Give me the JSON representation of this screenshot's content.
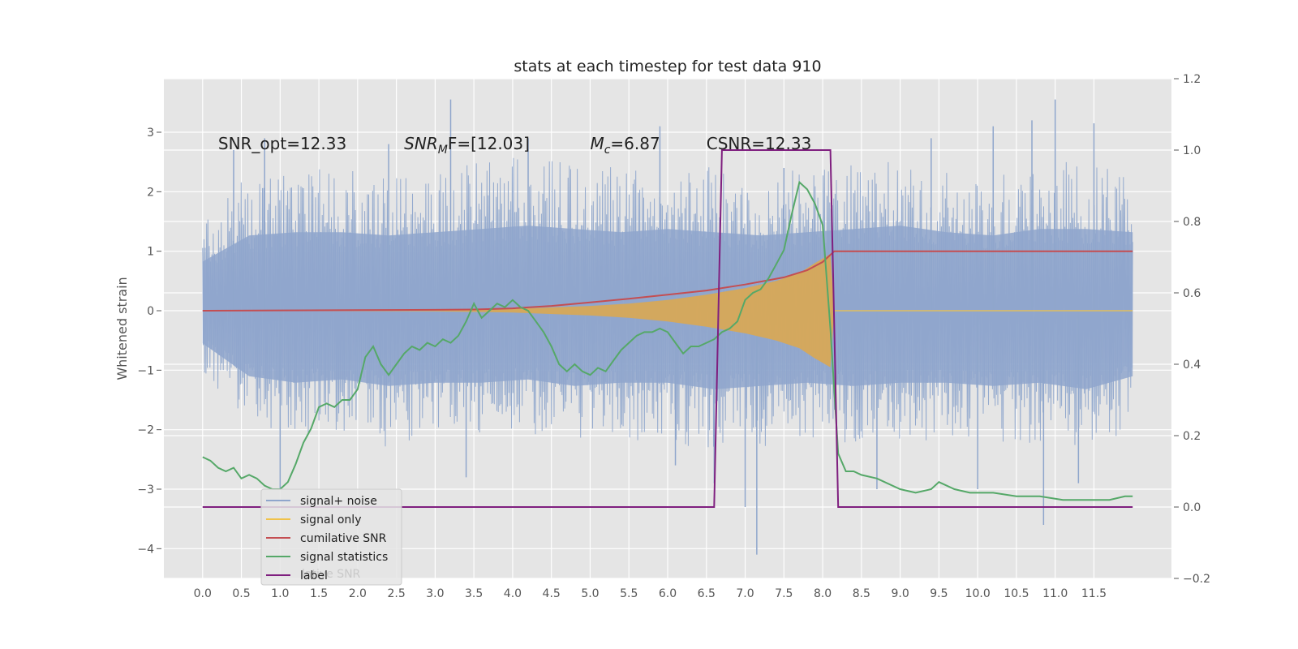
{
  "chart_data": {
    "type": "line",
    "title": "stats at each timestep for test data 910",
    "ylabel": "Whitened strain",
    "y2label": "",
    "xlim": [
      -0.5,
      12.5
    ],
    "ylim": [
      -4.5,
      3.9
    ],
    "y2lim": [
      -0.2,
      1.2
    ],
    "grid": true,
    "xticks": [
      0.0,
      0.5,
      1.0,
      1.5,
      2.0,
      2.5,
      3.0,
      3.5,
      4.0,
      4.5,
      5.0,
      5.5,
      6.0,
      6.5,
      7.0,
      7.5,
      8.0,
      8.5,
      9.0,
      9.5,
      10.0,
      10.5,
      11.0,
      11.5
    ],
    "xtick_labels": [
      "0.0",
      "0.5",
      "1.0",
      "1.5",
      "2.0",
      "2.5",
      "3.0",
      "3.5",
      "4.0",
      "4.5",
      "5.0",
      "5.5",
      "6.0",
      "6.5",
      "7.0",
      "7.5",
      "8.0",
      "8.5",
      "9.0",
      "9.5",
      "10.0",
      "10.5",
      "11.0",
      "11.5"
    ],
    "yticks": [
      3,
      2,
      1,
      0,
      -1,
      -2,
      -3,
      -4
    ],
    "ytick_labels": [
      "3",
      "2",
      "1",
      "0",
      "−1",
      "−2",
      "−3",
      "−4"
    ],
    "y2ticks": [
      1.2,
      1.0,
      0.8,
      0.6,
      0.4,
      0.2,
      0.0,
      -0.2
    ],
    "y2tick_labels": [
      "1.2",
      "1.0",
      "0.8",
      "0.6",
      "0.4",
      "0.2",
      "0.0",
      "−0.2"
    ],
    "annotations": [
      {
        "x": 0.2,
        "text": "SNR_opt=12.33"
      },
      {
        "x": 2.6,
        "base": "SNR",
        "sub": "M",
        "rest": "F=[12.03]"
      },
      {
        "x": 5.0,
        "base": "M",
        "sub": "c",
        "rest": "=6.87"
      },
      {
        "x": 6.5,
        "text": "CSNR=12.33"
      }
    ],
    "legend_position": "lower left",
    "legend": [
      {
        "label": "signal+ noise",
        "color": "#8fa6cc"
      },
      {
        "label": "signal only",
        "color": "#f0c24a"
      },
      {
        "label": "cumilative SNR",
        "color": "#c44e52"
      },
      {
        "label": "signal statistics",
        "color": "#55a868"
      },
      {
        "label": "label",
        "color": "#7f1f7f"
      }
    ],
    "legend_overlap_text": "lative SNR",
    "series": [
      {
        "name": "signal+ noise",
        "axis": "left",
        "color": "#8fa6cc",
        "x_range": [
          0.0,
          12.0
        ],
        "band_upper": [
          1.5,
          2.3,
          2.4,
          2.4,
          2.3,
          2.4,
          2.5,
          2.6,
          2.5,
          2.4,
          2.5,
          2.4,
          2.3,
          2.4,
          2.5,
          2.6,
          2.4,
          2.3,
          2.5,
          2.5,
          2.4
        ],
        "band_lower": [
          -1.0,
          -2.0,
          -2.2,
          -2.1,
          -2.3,
          -2.2,
          -2.2,
          -2.1,
          -2.3,
          -2.2,
          -2.2,
          -2.4,
          -2.3,
          -2.2,
          -2.3,
          -2.2,
          -2.2,
          -2.3,
          -2.2,
          -2.4,
          -2.0
        ],
        "peaks": [
          {
            "x": 0.4,
            "y": 2.7
          },
          {
            "x": 0.8,
            "y": 2.9
          },
          {
            "x": 1.0,
            "y": -3.0
          },
          {
            "x": 2.4,
            "y": 2.8
          },
          {
            "x": 3.2,
            "y": 3.55
          },
          {
            "x": 3.4,
            "y": -2.8
          },
          {
            "x": 4.2,
            "y": 2.9
          },
          {
            "x": 5.9,
            "y": 3.1
          },
          {
            "x": 6.1,
            "y": -2.6
          },
          {
            "x": 6.6,
            "y": -2.9
          },
          {
            "x": 7.0,
            "y": -3.3
          },
          {
            "x": 7.15,
            "y": -4.1
          },
          {
            "x": 7.5,
            "y": 2.4
          },
          {
            "x": 8.7,
            "y": -3.0
          },
          {
            "x": 9.4,
            "y": 2.9
          },
          {
            "x": 10.0,
            "y": -3.0
          },
          {
            "x": 10.2,
            "y": 3.1
          },
          {
            "x": 10.7,
            "y": 3.2
          },
          {
            "x": 10.85,
            "y": -3.6
          },
          {
            "x": 11.0,
            "y": 3.55
          },
          {
            "x": 11.3,
            "y": -2.9
          },
          {
            "x": 11.5,
            "y": 3.15
          }
        ]
      },
      {
        "name": "signal only",
        "axis": "left",
        "color": "#f0c24a",
        "x": [
          0.0,
          3.0,
          4.0,
          5.0,
          5.5,
          6.0,
          6.5,
          7.0,
          7.4,
          7.7,
          7.9,
          8.1,
          8.15,
          12.0
        ],
        "amplitude": [
          0.0,
          0.01,
          0.03,
          0.08,
          0.12,
          0.18,
          0.27,
          0.38,
          0.5,
          0.63,
          0.8,
          0.95,
          0.0,
          0.0
        ]
      },
      {
        "name": "cumilative SNR",
        "axis": "left",
        "color": "#c44e52",
        "x": [
          0.0,
          1.0,
          2.0,
          3.0,
          3.5,
          4.0,
          4.5,
          5.0,
          5.5,
          6.0,
          6.5,
          7.0,
          7.5,
          7.8,
          8.0,
          8.15,
          8.2,
          12.0
        ],
        "y": [
          0.0,
          0.005,
          0.01,
          0.015,
          0.02,
          0.04,
          0.08,
          0.14,
          0.2,
          0.27,
          0.34,
          0.44,
          0.56,
          0.68,
          0.82,
          1.0,
          1.0,
          1.0
        ]
      },
      {
        "name": "signal statistics",
        "axis": "right",
        "color": "#55a868",
        "x": [
          0.0,
          0.1,
          0.2,
          0.3,
          0.4,
          0.5,
          0.6,
          0.7,
          0.8,
          0.9,
          1.0,
          1.1,
          1.2,
          1.3,
          1.4,
          1.5,
          1.6,
          1.7,
          1.8,
          1.9,
          2.0,
          2.1,
          2.2,
          2.3,
          2.4,
          2.5,
          2.6,
          2.7,
          2.8,
          2.9,
          3.0,
          3.1,
          3.2,
          3.3,
          3.4,
          3.5,
          3.6,
          3.7,
          3.8,
          3.9,
          4.0,
          4.1,
          4.2,
          4.3,
          4.4,
          4.5,
          4.6,
          4.7,
          4.8,
          4.9,
          5.0,
          5.1,
          5.2,
          5.3,
          5.4,
          5.5,
          5.6,
          5.7,
          5.8,
          5.9,
          6.0,
          6.1,
          6.2,
          6.3,
          6.4,
          6.5,
          6.6,
          6.7,
          6.8,
          6.9,
          7.0,
          7.1,
          7.2,
          7.3,
          7.4,
          7.5,
          7.6,
          7.7,
          7.8,
          7.9,
          8.0,
          8.1,
          8.2,
          8.3,
          8.4,
          8.5,
          8.7,
          9.0,
          9.2,
          9.4,
          9.5,
          9.7,
          9.9,
          10.2,
          10.5,
          10.8,
          11.1,
          11.4,
          11.7,
          11.9,
          12.0
        ],
        "y": [
          0.14,
          0.13,
          0.11,
          0.1,
          0.11,
          0.08,
          0.09,
          0.08,
          0.06,
          0.05,
          0.05,
          0.07,
          0.12,
          0.18,
          0.22,
          0.28,
          0.29,
          0.28,
          0.3,
          0.3,
          0.33,
          0.42,
          0.45,
          0.4,
          0.37,
          0.4,
          0.43,
          0.45,
          0.44,
          0.46,
          0.45,
          0.47,
          0.46,
          0.48,
          0.52,
          0.57,
          0.53,
          0.55,
          0.57,
          0.56,
          0.58,
          0.56,
          0.55,
          0.52,
          0.49,
          0.45,
          0.4,
          0.38,
          0.4,
          0.38,
          0.37,
          0.39,
          0.38,
          0.41,
          0.44,
          0.46,
          0.48,
          0.49,
          0.49,
          0.5,
          0.49,
          0.46,
          0.43,
          0.45,
          0.45,
          0.46,
          0.47,
          0.49,
          0.5,
          0.52,
          0.58,
          0.6,
          0.61,
          0.64,
          0.68,
          0.72,
          0.82,
          0.91,
          0.89,
          0.85,
          0.79,
          0.5,
          0.15,
          0.1,
          0.1,
          0.09,
          0.08,
          0.05,
          0.04,
          0.05,
          0.07,
          0.05,
          0.04,
          0.04,
          0.03,
          0.03,
          0.02,
          0.02,
          0.02,
          0.03,
          0.03
        ]
      },
      {
        "name": "label",
        "axis": "right",
        "color": "#7f1f7f",
        "x": [
          0.0,
          6.6,
          6.7,
          8.1,
          8.2,
          12.0
        ],
        "y": [
          0.0,
          0.0,
          1.0,
          1.0,
          0.0,
          0.0
        ]
      }
    ]
  }
}
